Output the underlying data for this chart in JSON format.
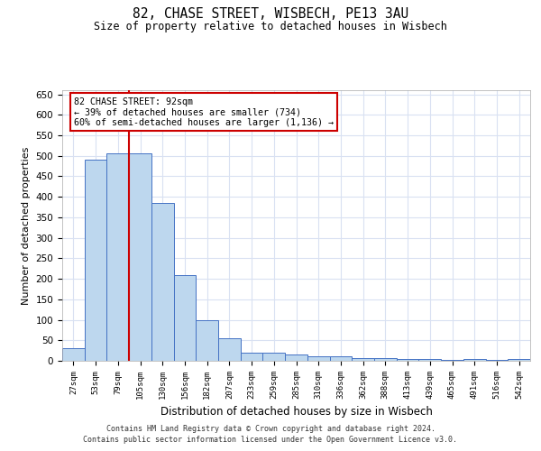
{
  "title_line1": "82, CHASE STREET, WISBECH, PE13 3AU",
  "title_line2": "Size of property relative to detached houses in Wisbech",
  "xlabel": "Distribution of detached houses by size in Wisbech",
  "ylabel": "Number of detached properties",
  "footer_line1": "Contains HM Land Registry data © Crown copyright and database right 2024.",
  "footer_line2": "Contains public sector information licensed under the Open Government Licence v3.0.",
  "categories": [
    "27sqm",
    "53sqm",
    "79sqm",
    "105sqm",
    "130sqm",
    "156sqm",
    "182sqm",
    "207sqm",
    "233sqm",
    "259sqm",
    "285sqm",
    "310sqm",
    "336sqm",
    "362sqm",
    "388sqm",
    "413sqm",
    "439sqm",
    "465sqm",
    "491sqm",
    "516sqm",
    "542sqm"
  ],
  "values": [
    30,
    490,
    505,
    505,
    385,
    210,
    100,
    55,
    20,
    20,
    15,
    10,
    10,
    7,
    7,
    5,
    5,
    2,
    5,
    2,
    5
  ],
  "bar_color": "#bdd7ee",
  "bar_edge_color": "#4472c4",
  "grid_color": "#d9e1f2",
  "background_color": "#ffffff",
  "annotation_line1": "82 CHASE STREET: 92sqm",
  "annotation_line2": "← 39% of detached houses are smaller (734)",
  "annotation_line3": "60% of semi-detached houses are larger (1,136) →",
  "annotation_box_color": "#cc0000",
  "property_line_x": 2.5,
  "ylim": [
    0,
    660
  ],
  "yticks": [
    0,
    50,
    100,
    150,
    200,
    250,
    300,
    350,
    400,
    450,
    500,
    550,
    600,
    650
  ]
}
